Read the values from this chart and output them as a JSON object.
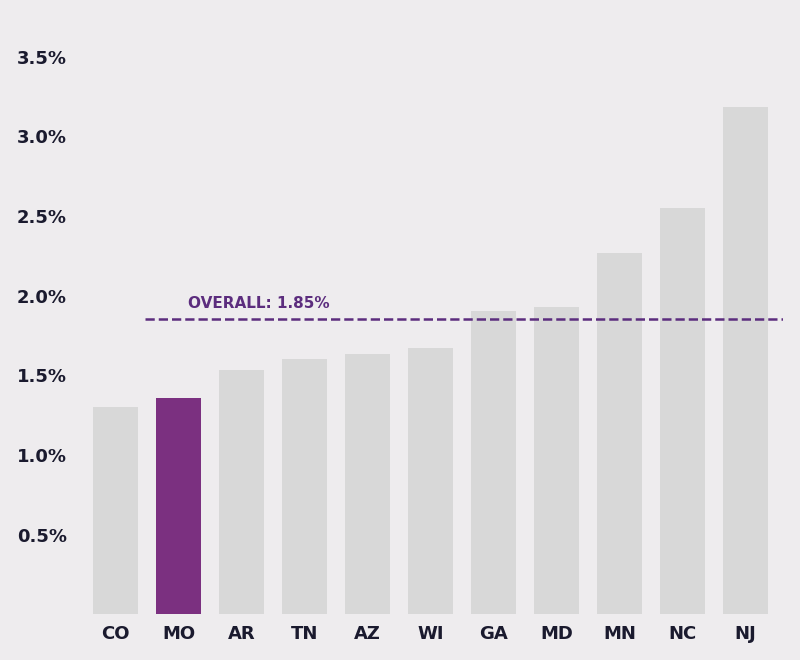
{
  "categories": [
    "CO",
    "MO",
    "AR",
    "TN",
    "AZ",
    "WI",
    "GA",
    "MD",
    "MN",
    "NC",
    "NJ"
  ],
  "values": [
    1.3,
    1.36,
    1.53,
    1.6,
    1.63,
    1.67,
    1.9,
    1.93,
    2.27,
    2.55,
    3.18
  ],
  "bar_colors": [
    "#d8d8d8",
    "#7b3080",
    "#d8d8d8",
    "#d8d8d8",
    "#d8d8d8",
    "#d8d8d8",
    "#d8d8d8",
    "#d8d8d8",
    "#d8d8d8",
    "#d8d8d8",
    "#d8d8d8"
  ],
  "overall_line": 1.85,
  "overall_label": "OVERALL: 1.85%",
  "overall_color": "#5c2d7e",
  "background_color": "#eeecee",
  "ylim": [
    0,
    3.75
  ],
  "yticks": [
    0.5,
    1.0,
    1.5,
    2.0,
    2.5,
    3.0,
    3.5
  ],
  "ytick_labels": [
    "0.5%",
    "1.0%",
    "1.5%",
    "2.0%",
    "2.5%",
    "3.0%",
    "3.5%"
  ],
  "axis_label_color": "#1a1a2e",
  "tick_fontsize": 13,
  "label_fontsize": 13,
  "overall_fontsize": 11,
  "bar_width": 0.72
}
